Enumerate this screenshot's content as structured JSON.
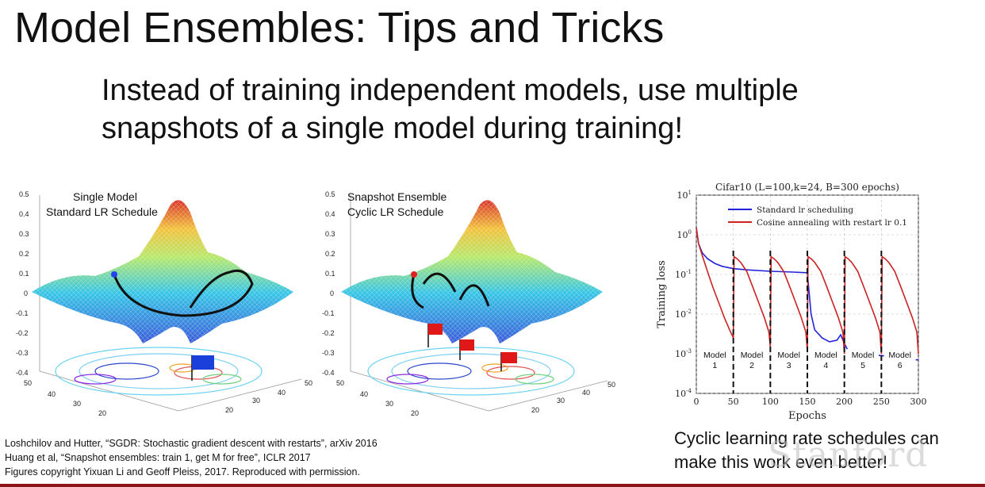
{
  "slide": {
    "title": "Model Ensembles: Tips and Tricks",
    "subtitle": "Instead of training independent models, use multiple snapshots of a single model during training!"
  },
  "figures": {
    "left": {
      "label_line1": "Single Model",
      "label_line2": "Standard LR Schedule",
      "z_ticks": [
        "0.5",
        "0.4",
        "0.3",
        "0.2",
        "0.1",
        "0",
        "-0.1",
        "-0.2",
        "-0.3",
        "-0.4"
      ],
      "x_ticks": [
        "50",
        "40",
        "30",
        "20"
      ],
      "y_ticks": [
        "50",
        "40",
        "30",
        "20"
      ]
    },
    "right": {
      "label_line1": "Snapshot Ensemble",
      "label_line2": "Cyclic LR Schedule",
      "z_ticks": [
        "0.5",
        "0.4",
        "0.3",
        "0.2",
        "0.1",
        "0",
        "-0.1",
        "-0.2",
        "-0.3",
        "-0.4"
      ],
      "x_ticks": [
        "50",
        "40",
        "30",
        "20"
      ],
      "y_ticks": [
        "50",
        "40",
        "30",
        "20"
      ]
    }
  },
  "chart_data": {
    "type": "line",
    "title": "Cifar10 (L=100,k=24, B=300 epochs)",
    "xlabel": "Epochs",
    "ylabel": "Training loss",
    "yscale": "log",
    "xlim": [
      0,
      300
    ],
    "ylim": [
      0.0001,
      10
    ],
    "x_ticks": [
      "0",
      "50",
      "100",
      "150",
      "200",
      "250",
      "300"
    ],
    "y_ticks": [
      {
        "base": "10",
        "exp": "1",
        "value": 10
      },
      {
        "base": "10",
        "exp": "0",
        "value": 1
      },
      {
        "base": "10",
        "exp": "-1",
        "value": 0.1
      },
      {
        "base": "10",
        "exp": "-2",
        "value": 0.01
      },
      {
        "base": "10",
        "exp": "-3",
        "value": 0.001
      },
      {
        "base": "10",
        "exp": "-4",
        "value": 0.0001
      }
    ],
    "grid": true,
    "legend_position": "top",
    "colors": {
      "standard": "#2222dd",
      "cosine": "#cc2222"
    },
    "series": [
      {
        "name": "Standard lr scheduling",
        "x": [
          0,
          3,
          8,
          15,
          25,
          35,
          50,
          70,
          100,
          130,
          150,
          155,
          160,
          170,
          180,
          190,
          195,
          200,
          205,
          210,
          250,
          270,
          290,
          300
        ],
        "y": [
          1.5,
          0.6,
          0.35,
          0.25,
          0.19,
          0.16,
          0.14,
          0.13,
          0.12,
          0.115,
          0.11,
          0.01,
          0.004,
          0.0025,
          0.002,
          0.0022,
          0.003,
          0.0018,
          0.0012,
          0.001,
          0.0009,
          0.0008,
          0.0007,
          0.0007
        ]
      },
      {
        "name": "Cosine annealing with restart lr 0.1",
        "x": [
          0,
          3,
          8,
          15,
          22,
          30,
          38,
          45,
          50,
          51,
          55,
          60,
          68,
          76,
          84,
          92,
          98,
          100,
          101,
          105,
          110,
          118,
          126,
          134,
          142,
          148,
          150,
          151,
          155,
          160,
          168,
          176,
          184,
          192,
          198,
          200,
          201,
          205,
          210,
          218,
          226,
          234,
          242,
          248,
          250,
          251,
          255,
          260,
          268,
          276,
          284,
          292,
          298,
          300
        ],
        "y": [
          1.5,
          0.6,
          0.3,
          0.12,
          0.05,
          0.02,
          0.008,
          0.004,
          0.0025,
          0.28,
          0.25,
          0.2,
          0.12,
          0.05,
          0.02,
          0.008,
          0.0035,
          0.0015,
          0.28,
          0.25,
          0.2,
          0.12,
          0.05,
          0.02,
          0.008,
          0.0035,
          0.0012,
          0.28,
          0.25,
          0.2,
          0.12,
          0.05,
          0.02,
          0.008,
          0.0035,
          0.001,
          0.28,
          0.25,
          0.2,
          0.12,
          0.05,
          0.02,
          0.008,
          0.0035,
          0.001,
          0.28,
          0.25,
          0.2,
          0.12,
          0.05,
          0.02,
          0.008,
          0.0035,
          0.001
        ]
      }
    ],
    "restarts": [
      50,
      100,
      150,
      200,
      250
    ],
    "model_labels": [
      {
        "line1": "Model",
        "line2": "1"
      },
      {
        "line1": "Model",
        "line2": "2"
      },
      {
        "line1": "Model",
        "line2": "3"
      },
      {
        "line1": "Model",
        "line2": "4"
      },
      {
        "line1": "Model",
        "line2": "5"
      },
      {
        "line1": "Model",
        "line2": "6"
      }
    ]
  },
  "references": [
    "Loshchilov and Hutter, “SGDR: Stochastic gradient descent with restarts”, arXiv 2016",
    "Huang et al, “Snapshot ensembles: train 1, get M for free”, ICLR 2017",
    "Figures copyright Yixuan Li and Geoff Pleiss, 2017. Reproduced with permission."
  ],
  "caption": "Cyclic learning rate schedules can make this work even better!",
  "watermark": "Stanford"
}
